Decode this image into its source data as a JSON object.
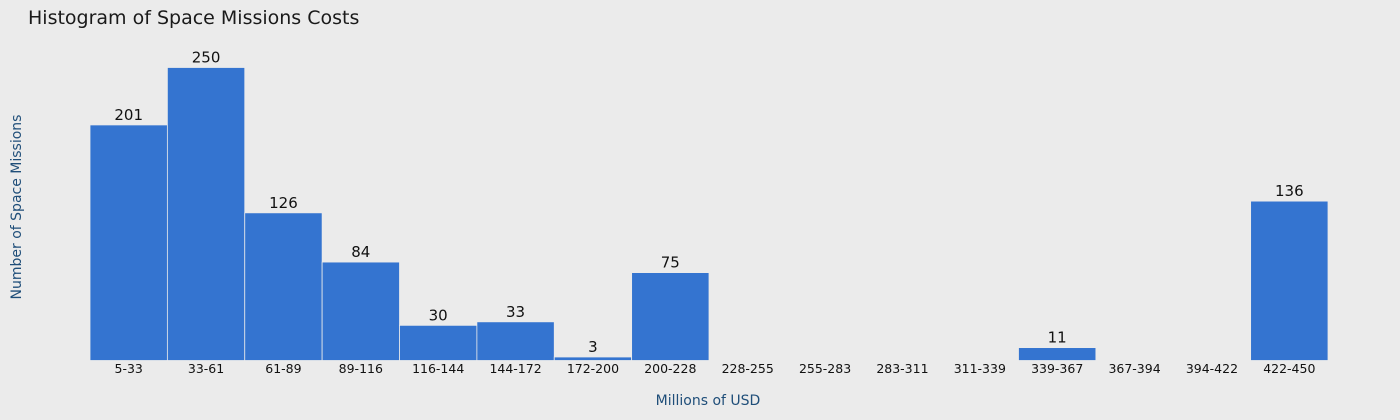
{
  "chart_data": {
    "type": "bar",
    "title": "Histogram of Space Missions Costs",
    "xlabel": "Millions of USD",
    "ylabel": "Number of Space Missions",
    "categories": [
      "5-33",
      "33-61",
      "61-89",
      "89-116",
      "116-144",
      "144-172",
      "172-200",
      "200-228",
      "228-255",
      "255-283",
      "283-311",
      "311-339",
      "339-367",
      "367-394",
      "394-422",
      "422-450"
    ],
    "values": [
      201,
      250,
      126,
      84,
      30,
      33,
      3,
      75,
      0,
      0,
      0,
      0,
      11,
      0,
      0,
      136
    ],
    "data_labels": [
      "201",
      "250",
      "126",
      "84",
      "30",
      "33",
      "3",
      "75",
      "",
      "",
      "",
      "",
      "11",
      "",
      "",
      "136"
    ],
    "ylim": [
      0,
      250
    ],
    "grid": false,
    "bar_color": "#3474d0",
    "background_color": "#ebebeb",
    "axis_label_color": "#1f4e79"
  }
}
